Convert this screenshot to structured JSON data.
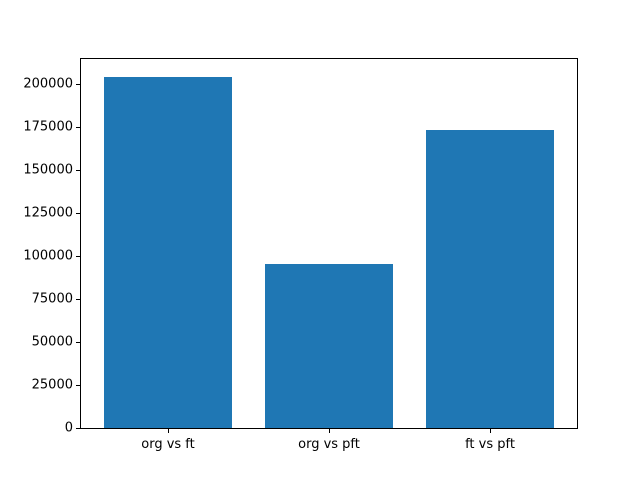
{
  "chart_data": {
    "type": "bar",
    "categories": [
      "org vs ft",
      "org vs pft",
      "ft vs pft"
    ],
    "values": [
      204000,
      95000,
      173000
    ],
    "title": "",
    "xlabel": "",
    "ylabel": "",
    "ylim": [
      0,
      214200
    ],
    "yticks": [
      0,
      25000,
      50000,
      75000,
      100000,
      125000,
      150000,
      175000,
      200000
    ],
    "bar_color": "#1f77b4",
    "grid": false,
    "legend": false
  }
}
